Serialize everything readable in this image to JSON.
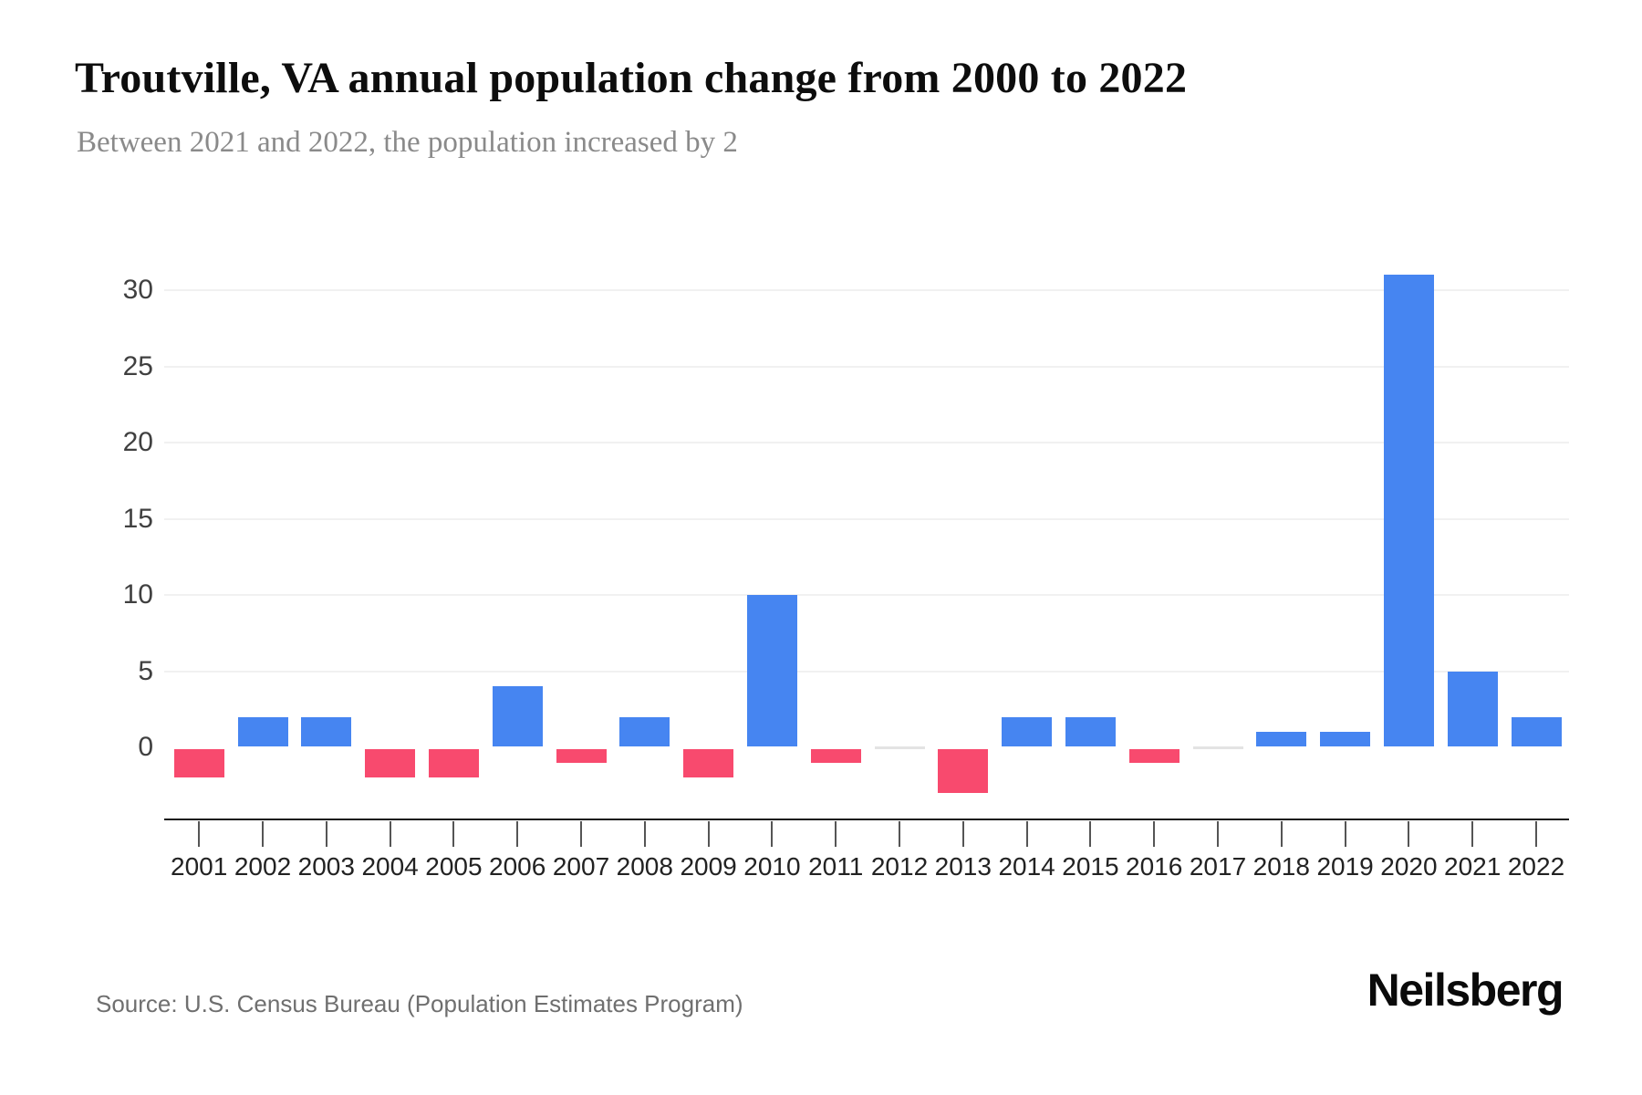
{
  "header": {
    "title": "Troutville, VA annual population change from 2000 to 2022",
    "subtitle": "Between 2021 and 2022, the population increased by 2"
  },
  "chart_data": {
    "type": "bar",
    "title": "Troutville, VA annual population change from 2000 to 2022",
    "subtitle": "Between 2021 and 2022, the population increased by 2",
    "categories": [
      "2001",
      "2002",
      "2003",
      "2004",
      "2005",
      "2006",
      "2007",
      "2008",
      "2009",
      "2010",
      "2011",
      "2012",
      "2013",
      "2014",
      "2015",
      "2016",
      "2017",
      "2018",
      "2019",
      "2020",
      "2021",
      "2022"
    ],
    "values": [
      -2,
      2,
      2,
      -2,
      -2,
      4,
      -1,
      2,
      -2,
      10,
      -1,
      0,
      -3,
      2,
      2,
      -1,
      0,
      1,
      1,
      31,
      5,
      2
    ],
    "yticks": [
      0,
      5,
      10,
      15,
      20,
      25,
      30
    ],
    "ylim": [
      -5,
      33
    ],
    "xlabel": "",
    "ylabel": "",
    "grid": true,
    "legend": false,
    "colors": {
      "positive": "#4685f1",
      "negative": "#f84a6e",
      "zero": "#e3e3e3",
      "gridline": "#f1f1f1",
      "axis": "#1a1a1a"
    }
  },
  "footer": {
    "source": "Source: U.S. Census Bureau (Population Estimates Program)",
    "logo": "Neilsberg"
  }
}
